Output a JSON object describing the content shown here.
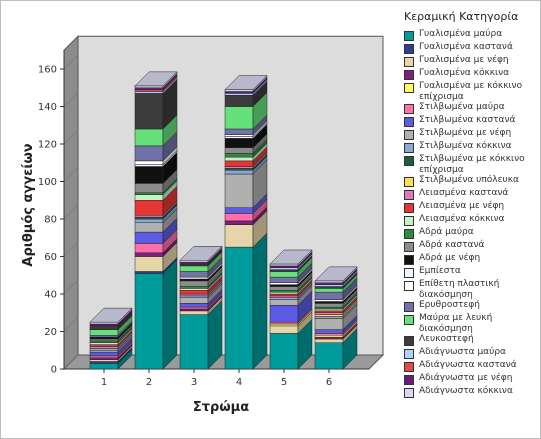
{
  "chart_data": {
    "type": "bar",
    "stacked": true,
    "three_d": true,
    "title": "",
    "xlabel": "Στρώμα",
    "ylabel": "Αριθμός αγγείων",
    "categories": [
      "1",
      "2",
      "3",
      "4",
      "5",
      "6"
    ],
    "ylim": [
      0,
      170
    ],
    "yticks": [
      0,
      20,
      40,
      60,
      80,
      100,
      120,
      140,
      160
    ],
    "legend_title": "Κεραμική Κατηγορία",
    "legend_position": "right",
    "series": [
      {
        "name": "Γυαλισμένα μαύρα",
        "color": "#009b9b",
        "values": [
          3,
          51,
          29,
          65,
          19,
          14
        ]
      },
      {
        "name": "Γυαλισμένα καστανά",
        "color": "#2f3f8f",
        "values": [
          1,
          1,
          0,
          0,
          0,
          0
        ]
      },
      {
        "name": "Γυαλισμένα με νέφη",
        "color": "#e6d5a8",
        "values": [
          1,
          8,
          2,
          12,
          4,
          2
        ]
      },
      {
        "name": "Γυαλισμένα κόκκινα",
        "color": "#7f1f7f",
        "values": [
          1,
          2,
          1,
          2,
          0,
          1
        ]
      },
      {
        "name": "Γυαλισμένα με κόκκινο επίχρισμα",
        "color": "#ffff66",
        "values": [
          0,
          0,
          0,
          0,
          1,
          1
        ]
      },
      {
        "name": "Στιλβωμένα μαύρα",
        "color": "#ff6fa8",
        "values": [
          1,
          5,
          1,
          4,
          1,
          1
        ]
      },
      {
        "name": "Στιλβωμένα καστανά",
        "color": "#5b5be6",
        "values": [
          2,
          6,
          2,
          3,
          9,
          2
        ]
      },
      {
        "name": "Στιλβωμένα με νέφη",
        "color": "#b0b0b0",
        "values": [
          1,
          5,
          3,
          18,
          3,
          6
        ]
      },
      {
        "name": "Στιλβωμένα κόκκινα",
        "color": "#8aaad6",
        "values": [
          1,
          2,
          1,
          2,
          1,
          1
        ]
      },
      {
        "name": "Στιλβωμένα με κόκκινο επίχρισμα",
        "color": "#1e5e3e",
        "values": [
          0,
          1,
          0,
          1,
          0,
          0
        ]
      },
      {
        "name": "Στιλβωμένα υπόλευκα",
        "color": "#ffdd55",
        "values": [
          0,
          0,
          0,
          0,
          0,
          1
        ]
      },
      {
        "name": "Λειασμένα καστανά",
        "color": "#e07ab8",
        "values": [
          1,
          1,
          1,
          1,
          1,
          1
        ]
      },
      {
        "name": "Λειασμένα με νέφη",
        "color": "#e53535",
        "values": [
          1,
          8,
          2,
          3,
          1,
          1
        ]
      },
      {
        "name": "Λειασμένα κόκκινα",
        "color": "#c8f0c8",
        "values": [
          1,
          3,
          1,
          2,
          1,
          1
        ]
      },
      {
        "name": "Αδρά μαύρα",
        "color": "#2e8b3e",
        "values": [
          1,
          1,
          1,
          2,
          1,
          1
        ]
      },
      {
        "name": "Αδρά καστανά",
        "color": "#8c8c8c",
        "values": [
          1,
          5,
          3,
          3,
          2,
          2
        ]
      },
      {
        "name": "Αδρά με νέφη",
        "color": "#111111",
        "values": [
          1,
          9,
          1,
          5,
          1,
          1
        ]
      },
      {
        "name": "Εμπίεστα",
        "color": "#e8f4ff",
        "values": [
          0,
          1,
          0,
          1,
          0,
          0
        ]
      },
      {
        "name": "Επίθετη πλαστική διακόσμηση",
        "color": "#ffffff",
        "values": [
          0,
          2,
          1,
          1,
          1,
          1
        ]
      },
      {
        "name": "Ερυθροστεφή",
        "color": "#7272a8",
        "values": [
          1,
          8,
          3,
          3,
          3,
          4
        ]
      },
      {
        "name": "Μαύρα με λευκή διακόσμηση",
        "color": "#66e07a",
        "values": [
          3,
          9,
          3,
          12,
          3,
          2
        ]
      },
      {
        "name": "Λευκοστεφή",
        "color": "#3c3c3c",
        "values": [
          2,
          19,
          1,
          6,
          1,
          1
        ]
      },
      {
        "name": "Αδιάγνωστα μαύρα",
        "color": "#a8d4ff",
        "values": [
          0,
          1,
          0,
          1,
          1,
          1
        ]
      },
      {
        "name": "Αδιάγνωστα καστανά",
        "color": "#e04a4a",
        "values": [
          0,
          1,
          0,
          0,
          0,
          0
        ]
      },
      {
        "name": "Αδιάγνωστα με νέφη",
        "color": "#6a1a7a",
        "values": [
          1,
          1,
          1,
          1,
          1,
          1
        ]
      },
      {
        "name": "Αδιάγνωστα κόκκινα",
        "color": "#d8d8f0",
        "values": [
          1,
          1,
          1,
          1,
          1,
          1
        ]
      }
    ]
  }
}
